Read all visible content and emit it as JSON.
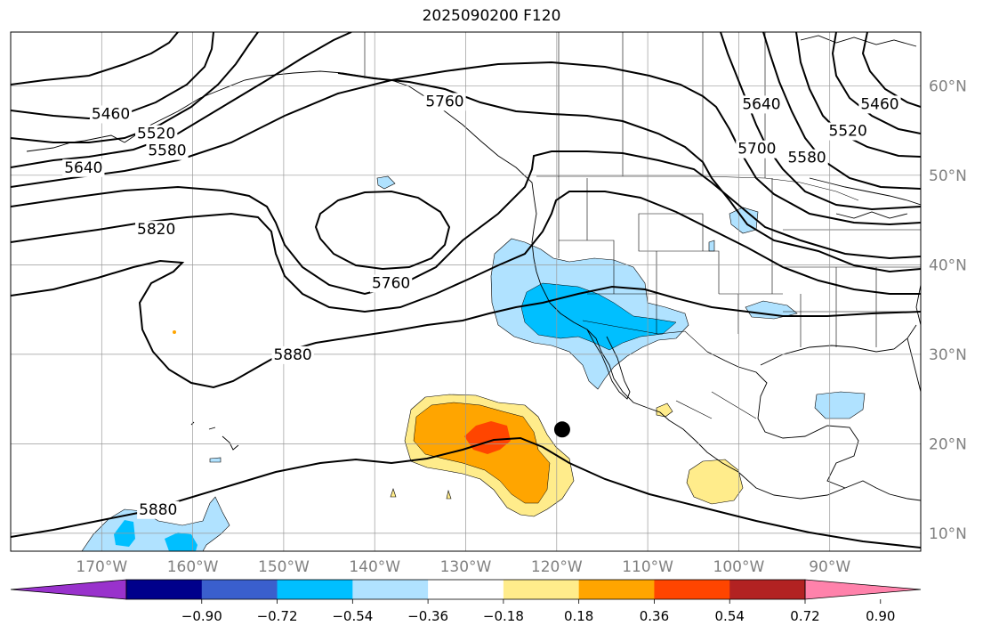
{
  "title": "2025090200 F120",
  "map": {
    "lon_range": [
      -180,
      -80
    ],
    "lat_range": [
      8,
      66
    ],
    "lon_ticks": [
      {
        "v": -170,
        "label": "170°W"
      },
      {
        "v": -160,
        "label": "160°W"
      },
      {
        "v": -150,
        "label": "150°W"
      },
      {
        "v": -140,
        "label": "140°W"
      },
      {
        "v": -130,
        "label": "130°W"
      },
      {
        "v": -120,
        "label": "120°W"
      },
      {
        "v": -110,
        "label": "110°W"
      },
      {
        "v": -100,
        "label": "100°W"
      },
      {
        "v": -90,
        "label": "90°W"
      }
    ],
    "lat_ticks": [
      {
        "v": 10,
        "label": "10°N"
      },
      {
        "v": 20,
        "label": "20°N"
      },
      {
        "v": 30,
        "label": "30°N"
      },
      {
        "v": 40,
        "label": "40°N"
      },
      {
        "v": 50,
        "label": "50°N"
      },
      {
        "v": 60,
        "label": "60°N"
      }
    ],
    "contour_labels": [
      {
        "text": "5460",
        "lon": -169.0,
        "lat": 56.9
      },
      {
        "text": "5520",
        "lon": -164.0,
        "lat": 54.7
      },
      {
        "text": "5580",
        "lon": -162.8,
        "lat": 52.8
      },
      {
        "text": "5640",
        "lon": -172.0,
        "lat": 50.9
      },
      {
        "text": "5760",
        "lon": -132.3,
        "lat": 58.3
      },
      {
        "text": "5820",
        "lon": -164.0,
        "lat": 44.0
      },
      {
        "text": "5760",
        "lon": -138.2,
        "lat": 38.0
      },
      {
        "text": "5880",
        "lon": -149.0,
        "lat": 30.0
      },
      {
        "text": "5880",
        "lon": -163.8,
        "lat": 12.7
      },
      {
        "text": "5640",
        "lon": -97.5,
        "lat": 58.0
      },
      {
        "text": "5700",
        "lon": -98.0,
        "lat": 53.0
      },
      {
        "text": "5580",
        "lon": -92.5,
        "lat": 52.0
      },
      {
        "text": "5520",
        "lon": -88.0,
        "lat": 55.0
      },
      {
        "text": "5460",
        "lon": -84.5,
        "lat": 58.0
      }
    ],
    "storm_marker": {
      "lon": -119.4,
      "lat": 21.6
    }
  },
  "colorbar": {
    "colors": [
      "#9932cc",
      "#00008b",
      "#3a5fcd",
      "#00bfff",
      "#b0e2ff",
      "#ffffff",
      "#ffec8b",
      "#ffa500",
      "#ff4500",
      "#b22222",
      "#ff82ab"
    ],
    "ticks": [
      "−0.90",
      "−0.72",
      "−0.54",
      "−0.36",
      "−0.18",
      "0.18",
      "0.36",
      "0.54",
      "0.72",
      "0.90"
    ]
  },
  "colors": {
    "light_blue": "#b0e2ff",
    "blue": "#00bfff",
    "yellow": "#ffec8b",
    "orange": "#ffa500",
    "red_orange": "#ff4500",
    "grid": "#999999"
  }
}
